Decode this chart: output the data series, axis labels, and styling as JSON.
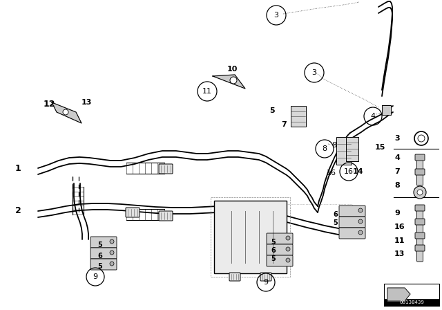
{
  "bg_color": "#ffffff",
  "line_color": "#000000",
  "fig_width": 6.4,
  "fig_height": 4.48,
  "watermark": "00138439"
}
